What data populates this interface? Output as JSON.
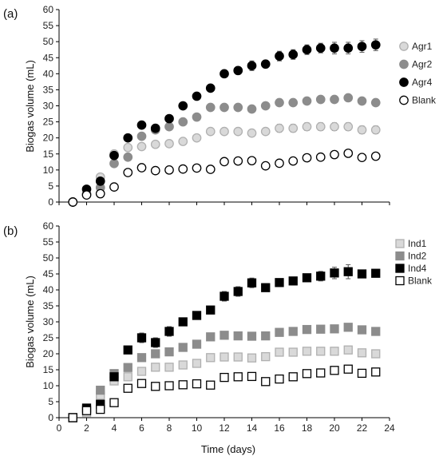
{
  "chart_data": [
    {
      "type": "scatter",
      "panel_label": "(a)",
      "ylabel": "Biogas volume (mL)",
      "xlabel": "",
      "xlim": [
        0,
        24
      ],
      "ylim": [
        0,
        60
      ],
      "x_ticks": [],
      "y_ticks": [
        0,
        5,
        10,
        15,
        20,
        25,
        30,
        35,
        40,
        45,
        50,
        55,
        60
      ],
      "grid": false,
      "legend_position": "right",
      "x": [
        1,
        2,
        3,
        4,
        5,
        6,
        7,
        8,
        9,
        10,
        11,
        12,
        13,
        14,
        15,
        16,
        17,
        18,
        19,
        20,
        21,
        22,
        23
      ],
      "series": [
        {
          "name": "Agr1",
          "marker": "circle",
          "fill": "#d9d9d9",
          "stroke": "#b0b0b0",
          "values": [
            0,
            2.5,
            7.8,
            15,
            17,
            17.3,
            18,
            18.2,
            18.9,
            20,
            22,
            22,
            22,
            21.5,
            22,
            23,
            23,
            23.5,
            23.5,
            23.5,
            23.5,
            22.5,
            22.5
          ],
          "errors": [
            0,
            0.5,
            0.8,
            0.8,
            0.8,
            0.8,
            0.8,
            0.9,
            0.9,
            1.0,
            1.0,
            1.0,
            1.0,
            1.0,
            1.0,
            1.2,
            1.2,
            1.2,
            1.2,
            1.2,
            1.2,
            1.2,
            1.2
          ]
        },
        {
          "name": "Agr2",
          "marker": "circle",
          "fill": "#8c8c8c",
          "stroke": "#8c8c8c",
          "values": [
            0,
            2.5,
            4.5,
            12,
            14,
            20.5,
            22.5,
            23.5,
            25,
            26.5,
            29.5,
            29.5,
            29.5,
            29,
            30,
            31,
            31,
            31.5,
            32,
            32,
            32.5,
            31.5,
            31
          ],
          "errors": [
            0,
            0.4,
            0.5,
            0.8,
            0.8,
            0.8,
            0.8,
            0.8,
            0.8,
            0.8,
            0.8,
            0.8,
            0.8,
            0.8,
            0.8,
            0.8,
            0.8,
            0.8,
            0.8,
            0.8,
            0.8,
            0.8,
            0.8
          ]
        },
        {
          "name": "Agr4",
          "marker": "circle",
          "fill": "#000000",
          "stroke": "#000000",
          "values": [
            0,
            4,
            6.5,
            14.5,
            20,
            24,
            23,
            26,
            30,
            33,
            35.5,
            40,
            41,
            42.5,
            43,
            45.5,
            46,
            47.5,
            48,
            48,
            48,
            48.5,
            49
          ],
          "errors": [
            0,
            0.5,
            0.6,
            0.8,
            0.8,
            0.8,
            0.9,
            1.0,
            1.0,
            1.0,
            1.0,
            1.0,
            1.2,
            1.5,
            1.2,
            1.5,
            1.5,
            1.5,
            1.5,
            1.8,
            1.8,
            1.8,
            1.8
          ]
        },
        {
          "name": "Blank",
          "marker": "circle-open",
          "fill": "#ffffff",
          "stroke": "#000000",
          "values": [
            0,
            2.2,
            2.6,
            4.7,
            9.2,
            10.7,
            9.8,
            10,
            10.3,
            10.6,
            10.2,
            12.6,
            12.8,
            12.9,
            11.3,
            12.1,
            12.8,
            13.8,
            14,
            14.8,
            15.2,
            13.9,
            14.3
          ],
          "errors": [
            0,
            0.4,
            0.5,
            0.6,
            1.0,
            1.0,
            1.0,
            1.0,
            1.0,
            1.0,
            1.0,
            1.0,
            1.0,
            1.0,
            1.0,
            1.0,
            1.0,
            1.0,
            1.0,
            1.0,
            1.0,
            1.0,
            1.0
          ]
        }
      ]
    },
    {
      "type": "scatter",
      "panel_label": "(b)",
      "ylabel": "Biogas volume (mL)",
      "xlabel": "Time (days)",
      "xlim": [
        0,
        24
      ],
      "ylim": [
        0,
        60
      ],
      "x_ticks": [
        0,
        2,
        4,
        6,
        8,
        10,
        12,
        14,
        16,
        18,
        20,
        22,
        24
      ],
      "y_ticks": [
        0,
        5,
        10,
        15,
        20,
        25,
        30,
        35,
        40,
        45,
        50,
        55,
        60
      ],
      "grid": false,
      "legend_position": "top-right",
      "x": [
        1,
        2,
        3,
        4,
        5,
        6,
        7,
        8,
        9,
        10,
        11,
        12,
        13,
        14,
        15,
        16,
        17,
        18,
        19,
        20,
        21,
        22,
        23
      ],
      "series": [
        {
          "name": "Ind1",
          "marker": "square",
          "fill": "#d9d9d9",
          "stroke": "#b0b0b0",
          "values": [
            0,
            1.5,
            7,
            11.5,
            12.8,
            14.5,
            15.8,
            15.8,
            16.5,
            17,
            18.8,
            19,
            19,
            18.7,
            19.1,
            20.5,
            20.5,
            20.8,
            20.8,
            20.8,
            21.2,
            20.3,
            20
          ],
          "errors": [
            0,
            0.4,
            0.8,
            0.8,
            0.8,
            0.8,
            0.9,
            0.9,
            0.9,
            1.0,
            1.0,
            1.0,
            1.0,
            1.0,
            1.0,
            1.0,
            1.0,
            1.0,
            1.0,
            1.0,
            1.0,
            1.0,
            1.0
          ]
        },
        {
          "name": "Ind2",
          "marker": "square",
          "fill": "#8c8c8c",
          "stroke": "#8c8c8c",
          "values": [
            0,
            2.5,
            8.6,
            13.8,
            15.7,
            18.8,
            20,
            20.6,
            22,
            23,
            25.3,
            25.8,
            25.6,
            25.5,
            25.6,
            26.7,
            27,
            27.6,
            27.7,
            27.8,
            28.3,
            27.5,
            27
          ],
          "errors": [
            0,
            0.4,
            0.6,
            0.6,
            0.6,
            0.6,
            0.6,
            0.6,
            0.6,
            0.6,
            0.6,
            0.6,
            0.6,
            0.6,
            0.6,
            0.6,
            0.6,
            0.6,
            0.6,
            0.6,
            0.6,
            0.6,
            0.6
          ]
        },
        {
          "name": "Ind4",
          "marker": "square",
          "fill": "#000000",
          "stroke": "#000000",
          "values": [
            0,
            3,
            4.2,
            12.8,
            21.2,
            25,
            23.5,
            27,
            30,
            32,
            33.7,
            38,
            39.5,
            42.2,
            40.7,
            42.3,
            42.8,
            43.8,
            44.3,
            45.3,
            45.7,
            45,
            45.2
          ],
          "errors": [
            0,
            1.2,
            0.8,
            1.0,
            1.2,
            1.5,
            1.5,
            1.5,
            1.0,
            1.0,
            1.2,
            1.5,
            1.5,
            1.5,
            1.2,
            1.2,
            1.2,
            1.2,
            1.5,
            1.8,
            2.2,
            1.0,
            1.2
          ]
        },
        {
          "name": "Blank",
          "marker": "square-open",
          "fill": "#ffffff",
          "stroke": "#000000",
          "values": [
            0,
            2.2,
            2.6,
            4.7,
            9.2,
            10.7,
            9.8,
            10,
            10.3,
            10.6,
            10.2,
            12.6,
            12.8,
            12.9,
            11.3,
            12.1,
            12.8,
            13.8,
            14,
            14.8,
            15.2,
            13.9,
            14.3
          ],
          "errors": [
            0,
            0.4,
            0.5,
            0.6,
            1.0,
            1.0,
            1.0,
            1.0,
            1.0,
            1.0,
            1.0,
            1.0,
            1.0,
            1.0,
            1.0,
            1.0,
            1.0,
            1.0,
            1.0,
            1.0,
            1.0,
            1.0,
            1.0
          ]
        }
      ]
    }
  ]
}
